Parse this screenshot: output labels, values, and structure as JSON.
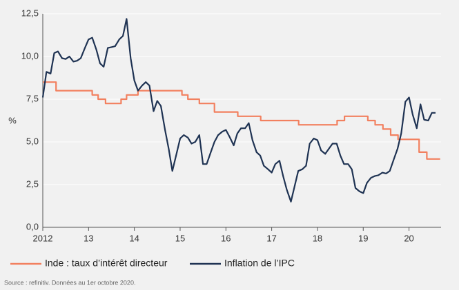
{
  "chart_data": {
    "type": "line",
    "ylabel": "%",
    "xlim": [
      2012,
      2020.7
    ],
    "xticks": [
      2012,
      {
        "value": 2013,
        "label": "13"
      },
      {
        "value": 2014,
        "label": "14"
      },
      {
        "value": 2015,
        "label": "15"
      },
      {
        "value": 2016,
        "label": "16"
      },
      {
        "value": 2017,
        "label": "17"
      },
      {
        "value": 2018,
        "label": "18"
      },
      {
        "value": 2019,
        "label": "19"
      },
      {
        "value": 2020,
        "label": "20"
      }
    ],
    "ylim": [
      0,
      12.5
    ],
    "yticks": [
      {
        "value": 0,
        "label": "0,0"
      },
      {
        "value": 2.5,
        "label": "2,5"
      },
      {
        "value": 5,
        "label": "5,0"
      },
      {
        "value": 7.5,
        "label": "7,5"
      },
      {
        "value": 10,
        "label": "10,0"
      },
      {
        "value": 12.5,
        "label": "12,5"
      }
    ],
    "grid": true,
    "source": "Source : refinitiv. Données au 1er octobre 2020.",
    "series": [
      {
        "name": "Inde : taux d’intérêt directeur",
        "color": "#f2805f",
        "x": [
          2012.0,
          2012.29,
          2012.29,
          2013.08,
          2013.08,
          2013.21,
          2013.21,
          2013.37,
          2013.37,
          2013.71,
          2013.71,
          2013.83,
          2013.83,
          2014.08,
          2014.08,
          2015.04,
          2015.04,
          2015.17,
          2015.17,
          2015.42,
          2015.42,
          2015.75,
          2015.75,
          2016.26,
          2016.26,
          2016.76,
          2016.76,
          2017.59,
          2017.59,
          2018.43,
          2018.43,
          2018.59,
          2018.59,
          2019.1,
          2019.1,
          2019.26,
          2019.26,
          2019.43,
          2019.43,
          2019.6,
          2019.6,
          2019.76,
          2019.76,
          2020.22,
          2020.22,
          2020.39,
          2020.39,
          2020.68
        ],
        "values": [
          8.5,
          8.5,
          8.0,
          8.0,
          7.75,
          7.75,
          7.5,
          7.5,
          7.25,
          7.25,
          7.5,
          7.5,
          7.75,
          7.75,
          8.0,
          8.0,
          7.75,
          7.75,
          7.5,
          7.5,
          7.25,
          7.25,
          6.75,
          6.75,
          6.5,
          6.5,
          6.25,
          6.25,
          6.0,
          6.0,
          6.25,
          6.25,
          6.5,
          6.5,
          6.25,
          6.25,
          6.0,
          6.0,
          5.75,
          5.75,
          5.4,
          5.4,
          5.15,
          5.15,
          4.4,
          4.4,
          4.0,
          4.0
        ]
      },
      {
        "name": "Inflation de l’IPC",
        "color": "#1f3353",
        "x": [
          2012.0,
          2012.08,
          2012.17,
          2012.25,
          2012.33,
          2012.42,
          2012.5,
          2012.58,
          2012.67,
          2012.75,
          2012.83,
          2012.92,
          2013.0,
          2013.08,
          2013.17,
          2013.25,
          2013.33,
          2013.42,
          2013.5,
          2013.58,
          2013.67,
          2013.75,
          2013.83,
          2013.92,
          2014.0,
          2014.08,
          2014.17,
          2014.25,
          2014.33,
          2014.42,
          2014.5,
          2014.58,
          2014.67,
          2014.75,
          2014.83,
          2014.92,
          2015.0,
          2015.08,
          2015.17,
          2015.25,
          2015.33,
          2015.42,
          2015.5,
          2015.58,
          2015.67,
          2015.75,
          2015.83,
          2015.92,
          2016.0,
          2016.08,
          2016.17,
          2016.25,
          2016.33,
          2016.42,
          2016.5,
          2016.58,
          2016.67,
          2016.75,
          2016.83,
          2016.92,
          2017.0,
          2017.08,
          2017.17,
          2017.25,
          2017.33,
          2017.42,
          2017.5,
          2017.58,
          2017.67,
          2017.75,
          2017.83,
          2017.92,
          2018.0,
          2018.08,
          2018.17,
          2018.25,
          2018.33,
          2018.42,
          2018.5,
          2018.58,
          2018.67,
          2018.75,
          2018.83,
          2018.92,
          2019.0,
          2019.08,
          2019.17,
          2019.25,
          2019.33,
          2019.42,
          2019.5,
          2019.58,
          2019.67,
          2019.75,
          2019.83,
          2019.92,
          2020.0,
          2020.08,
          2020.17,
          2020.25,
          2020.33,
          2020.42,
          2020.5,
          2020.58
        ],
        "values": [
          7.6,
          9.1,
          9.0,
          10.2,
          10.3,
          9.9,
          9.85,
          10.0,
          9.7,
          9.75,
          9.9,
          10.5,
          11.0,
          11.1,
          10.4,
          9.6,
          9.4,
          10.5,
          10.55,
          10.6,
          11.0,
          11.2,
          12.2,
          9.9,
          8.6,
          8.0,
          8.3,
          8.5,
          8.3,
          6.8,
          7.4,
          7.1,
          5.7,
          4.6,
          3.3,
          4.3,
          5.2,
          5.4,
          5.25,
          4.9,
          5.0,
          5.4,
          3.7,
          3.7,
          4.4,
          5.0,
          5.4,
          5.6,
          5.7,
          5.3,
          4.8,
          5.5,
          5.8,
          5.8,
          6.1,
          5.1,
          4.4,
          4.2,
          3.6,
          3.4,
          3.2,
          3.7,
          3.9,
          3.0,
          2.2,
          1.5,
          2.4,
          3.3,
          3.4,
          3.6,
          4.9,
          5.2,
          5.1,
          4.5,
          4.3,
          4.6,
          4.9,
          4.9,
          4.2,
          3.7,
          3.7,
          3.4,
          2.3,
          2.1,
          2.0,
          2.6,
          2.9,
          3.0,
          3.05,
          3.2,
          3.15,
          3.3,
          4.0,
          4.6,
          5.5,
          7.35,
          7.6,
          6.6,
          5.8,
          7.2,
          6.3,
          6.25,
          6.7,
          6.7
        ]
      }
    ]
  }
}
